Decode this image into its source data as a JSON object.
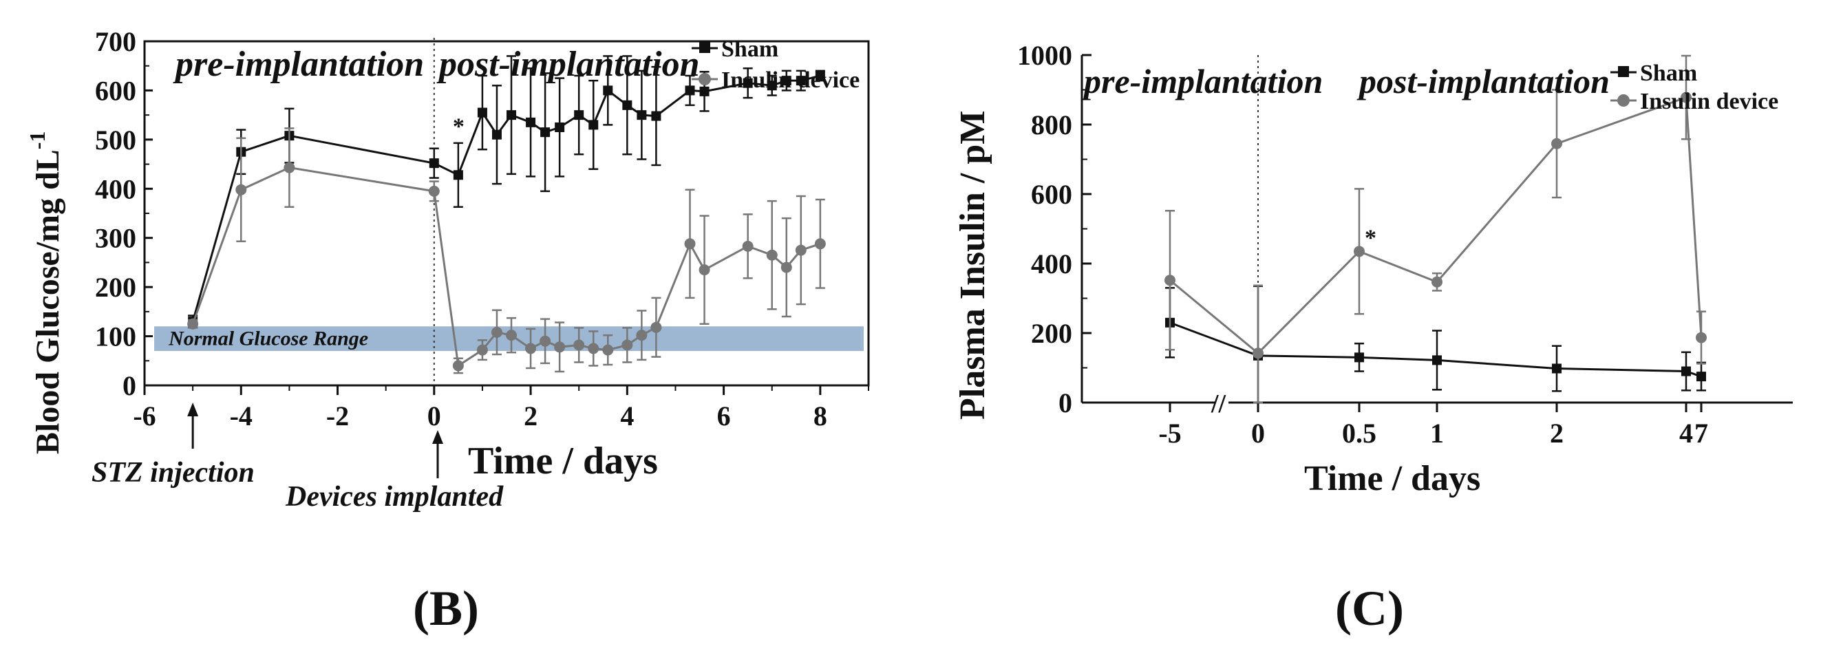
{
  "colors": {
    "sham": "#111111",
    "device": "#777777",
    "normal_band": "#9db6d1"
  },
  "chart_data": [
    {
      "panel": "(B)",
      "type": "line",
      "ylabel_main": "Blood Glucose/mg dL",
      "ylabel_sup": "-1",
      "xlabel": "Time / days",
      "xlim": [
        -6,
        9
      ],
      "ylim": [
        0,
        700
      ],
      "xticks": [
        "-6",
        "-4",
        "-2",
        "0",
        "2",
        "4",
        "6",
        "8"
      ],
      "xtick_values": [
        -6,
        -4,
        -2,
        0,
        2,
        4,
        6,
        8
      ],
      "yticks": [
        "0",
        "100",
        "200",
        "300",
        "400",
        "500",
        "600",
        "700"
      ],
      "ytick_values": [
        0,
        100,
        200,
        300,
        400,
        500,
        600,
        700
      ],
      "band": {
        "label": "Normal Glucose Range",
        "from": 70,
        "to": 120
      },
      "region_labels": {
        "pre": "pre-implantation",
        "post": "post-implantation"
      },
      "divider_x": 0,
      "annotations": [
        {
          "text": "STZ injection",
          "x": -5
        },
        {
          "text": "Devices implanted",
          "x": 0
        }
      ],
      "star": {
        "text": "*",
        "x": 0.5,
        "y": 520
      },
      "legend": [
        "Sham",
        "Insulin device"
      ],
      "series": [
        {
          "name": "Sham",
          "x": [
            -5,
            -4,
            -3,
            0,
            0.5,
            1,
            1.3,
            1.6,
            2,
            2.3,
            2.6,
            3,
            3.3,
            3.6,
            4,
            4.3,
            4.6,
            5.3,
            5.6,
            6.5,
            7,
            7.3,
            7.6,
            8
          ],
          "y": [
            130,
            475,
            508,
            452,
            428,
            555,
            510,
            550,
            535,
            515,
            525,
            550,
            530,
            600,
            570,
            550,
            548,
            600,
            598,
            615,
            610,
            620,
            620,
            630
          ],
          "err": [
            12,
            45,
            55,
            30,
            65,
            75,
            100,
            120,
            110,
            120,
            100,
            80,
            90,
            70,
            100,
            90,
            100,
            30,
            40,
            30,
            20,
            20,
            20,
            10
          ]
        },
        {
          "name": "Insulin device",
          "x": [
            -5,
            -4,
            -3,
            0,
            0.5,
            1,
            1.3,
            1.6,
            2,
            2.3,
            2.6,
            3,
            3.3,
            3.6,
            4,
            4.3,
            4.6,
            5.3,
            5.6,
            6.5,
            7,
            7.3,
            7.6,
            8
          ],
          "y": [
            125,
            398,
            443,
            395,
            40,
            72,
            108,
            102,
            75,
            90,
            78,
            82,
            75,
            72,
            82,
            102,
            118,
            288,
            235,
            283,
            265,
            240,
            275,
            288
          ],
          "err": [
            8,
            105,
            80,
            20,
            15,
            20,
            45,
            35,
            40,
            45,
            50,
            35,
            35,
            30,
            35,
            50,
            60,
            110,
            110,
            65,
            110,
            100,
            110,
            90
          ]
        }
      ]
    },
    {
      "panel": "(C)",
      "type": "line",
      "ylabel": "Plasma Insulin / pM",
      "xlabel": "Time / days",
      "ylim": [
        0,
        1000
      ],
      "xticks": [
        "-5",
        "0",
        "0.5",
        "1",
        "2",
        "4",
        "7"
      ],
      "yticks": [
        "0",
        "200",
        "400",
        "600",
        "800",
        "1000"
      ],
      "ytick_values": [
        0,
        200,
        400,
        600,
        800,
        1000
      ],
      "axis_break": "//",
      "region_labels": {
        "pre": "pre-implantation",
        "post": "post-implantation"
      },
      "star": {
        "text": "*",
        "x": "0.5",
        "y": 480
      },
      "legend": [
        "Sham",
        "Insulin device"
      ],
      "series": [
        {
          "name": "Sham",
          "x": [
            "-5",
            "0",
            "0.5",
            "1",
            "2",
            "4",
            "7"
          ],
          "y": [
            230,
            135,
            130,
            122,
            98,
            90,
            75
          ],
          "err": [
            100,
            200,
            40,
            85,
            65,
            55,
            40
          ]
        },
        {
          "name": "Insulin device",
          "x": [
            "-5",
            "0",
            "0.5",
            "1",
            "2",
            "4",
            "7"
          ],
          "y": [
            352,
            142,
            435,
            347,
            745,
            878,
            187
          ],
          "err": [
            200,
            195,
            180,
            25,
            155,
            120,
            75
          ]
        }
      ]
    }
  ]
}
